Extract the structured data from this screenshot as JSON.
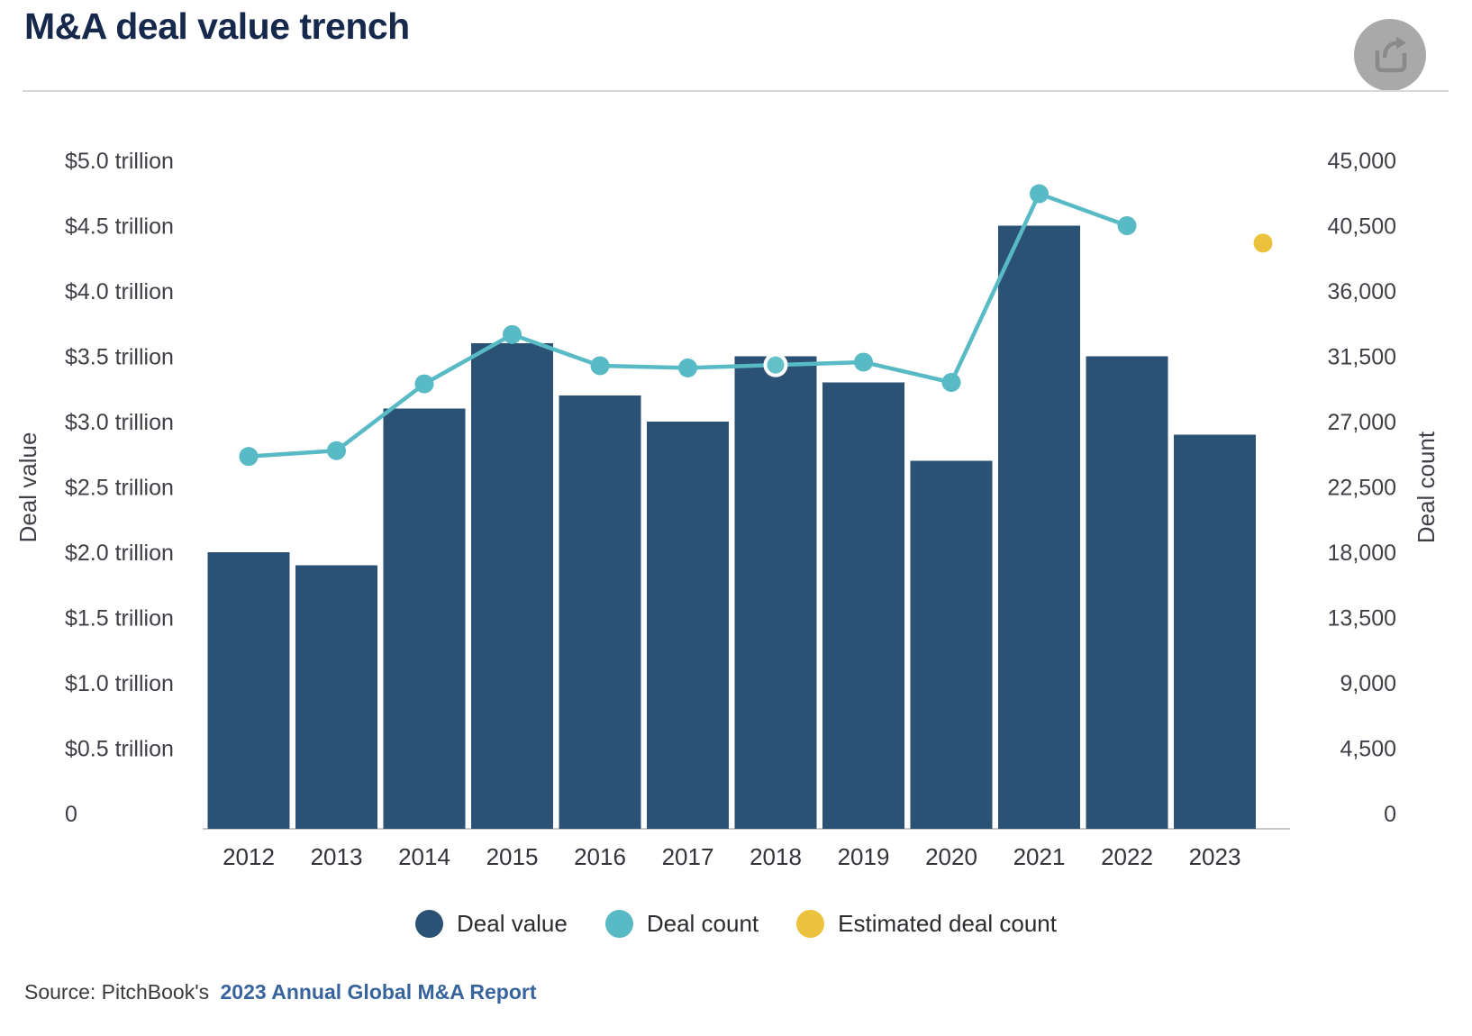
{
  "header": {
    "title": "M&A deal value trench",
    "share_icon": "share-export-arrow"
  },
  "legend": [
    {
      "label": "Deal value",
      "color": "#2b5174",
      "marker": "circle"
    },
    {
      "label": "Deal count",
      "color": "#58bac4",
      "marker": "circle"
    },
    {
      "label": "Estimated deal count",
      "color": "#ecc23d",
      "marker": "circle"
    }
  ],
  "source": {
    "text": "Source: PitchBook's",
    "link_text": "2023 Annual Global M&A Report"
  },
  "colors": {
    "bar": "#2b5174",
    "line": "#58bac4",
    "estimated": "#ecc23d",
    "highlight_dot_fill": "#63c1c7",
    "axis_line": "#c8c8c8",
    "tick_text": "#3f3f46",
    "category_text": "#33333a",
    "title_text": "#16294d",
    "link": "#38649e",
    "share_circle": "#a9a9a9",
    "share_glyph": "#8a8a8a"
  },
  "chart_data": {
    "type": "combo",
    "title": "M&A deal value trench",
    "categories": [
      "2012",
      "2013",
      "2014",
      "2015",
      "2016",
      "2017",
      "2018",
      "2019",
      "2020",
      "2021",
      "2022",
      "2023"
    ],
    "series": [
      {
        "name": "Deal value",
        "type": "bar",
        "axis": "left",
        "unit": "USD trillions",
        "color": "#2b5174",
        "values": [
          2.0,
          1.9,
          3.1,
          3.6,
          3.2,
          3.0,
          3.5,
          3.3,
          2.7,
          4.5,
          3.5,
          2.9
        ]
      },
      {
        "name": "Deal count",
        "type": "line",
        "axis": "right",
        "color": "#58bac4",
        "values": [
          24600,
          25000,
          29600,
          33000,
          30850,
          30700,
          30900,
          31100,
          29700,
          42700,
          40500,
          null
        ],
        "highlight_category": "2018"
      },
      {
        "name": "Estimated deal count",
        "type": "scatter",
        "axis": "right",
        "color": "#ecc23d",
        "values": [
          null,
          null,
          null,
          null,
          null,
          null,
          null,
          null,
          null,
          null,
          null,
          39300
        ]
      }
    ],
    "left_axis": {
      "title": "Deal value",
      "min": 0,
      "max": 5.0,
      "tick_step": 0.5,
      "tick_labels": [
        "$5.0 trillion",
        "$4.5 trillion",
        "$4.0 trillion",
        "$3.5 trillion",
        "$3.0 trillion",
        "$2.5 trillion",
        "$2.0 trillion",
        "$1.5 trillion",
        "$1.0 trillion",
        "$0.5 trillion",
        "0"
      ]
    },
    "right_axis": {
      "title": "Deal count",
      "min": 0,
      "max": 45000,
      "tick_step": 4500,
      "tick_labels": [
        "45,000",
        "40,500",
        "36,000",
        "31,500",
        "27,000",
        "22,500",
        "18,000",
        "13,500",
        "9,000",
        "4,500",
        "0"
      ]
    },
    "grid": false,
    "legend_position": "bottom"
  }
}
